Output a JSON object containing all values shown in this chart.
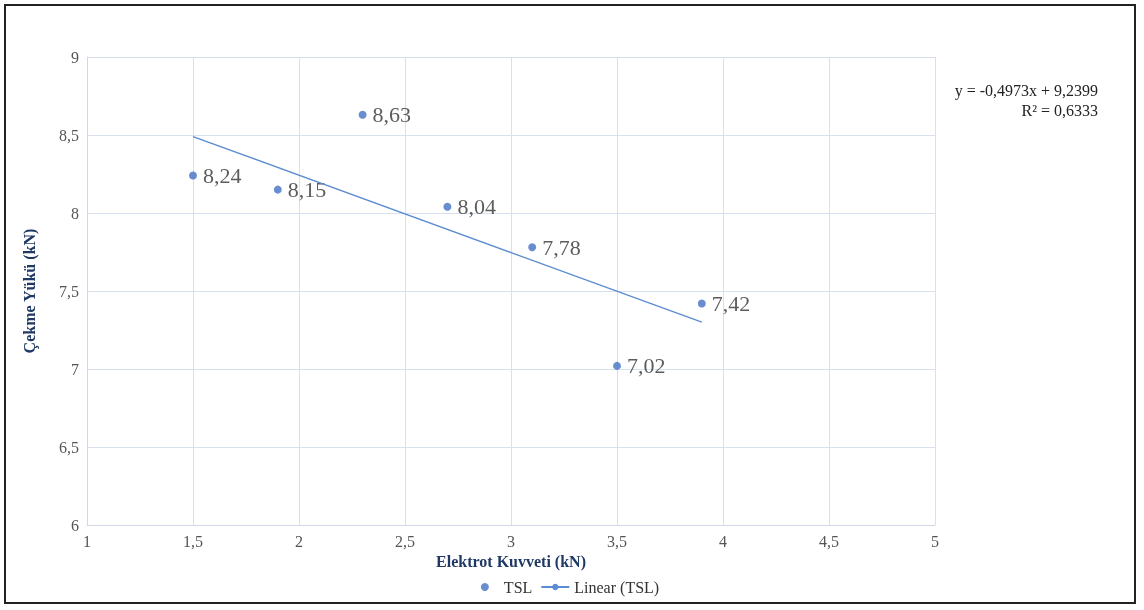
{
  "chart_data": {
    "type": "scatter",
    "xlabel": "Elektrot Kuvveti (kN)",
    "ylabel": "Çekme Yükü (kN)",
    "annotations": [
      "y = -0,4973x + 9,2399",
      "R² = 0,6333"
    ],
    "series": [
      {
        "name": "TSL",
        "color": "#4472c4",
        "x": [
          1.5,
          1.9,
          2.3,
          2.7,
          3.1,
          3.5,
          3.9
        ],
        "values": [
          8.24,
          8.15,
          8.63,
          8.04,
          7.78,
          7.02,
          7.42
        ],
        "value_labels": [
          "8,24",
          "8,15",
          "8,63",
          "8,04",
          "7,78",
          "7,02",
          "7,42"
        ],
        "marker": "circle"
      },
      {
        "name": "Linear (TSL)",
        "type": "line",
        "color": "#5b8bd0",
        "x": [
          1.5,
          3.9
        ],
        "values": [
          8.49,
          7.3
        ],
        "marker": "none",
        "line_style": "solid"
      }
    ],
    "xlim": [
      1,
      5
    ],
    "xticks": [
      1,
      {
        "value": 1.5,
        "label": "1,5"
      },
      2,
      {
        "value": 2.5,
        "label": "2,5"
      },
      3,
      {
        "value": 3.5,
        "label": "3,5"
      },
      4,
      {
        "value": 4.5,
        "label": "4,5"
      },
      5
    ],
    "ylim": [
      6,
      9
    ],
    "yticks": [
      6,
      {
        "value": 6.5,
        "label": "6,5"
      },
      7,
      {
        "value": 7.5,
        "label": "7,5"
      },
      8,
      {
        "value": 8.5,
        "label": "8,5"
      },
      9
    ],
    "grid": true,
    "legend": "bottom"
  }
}
